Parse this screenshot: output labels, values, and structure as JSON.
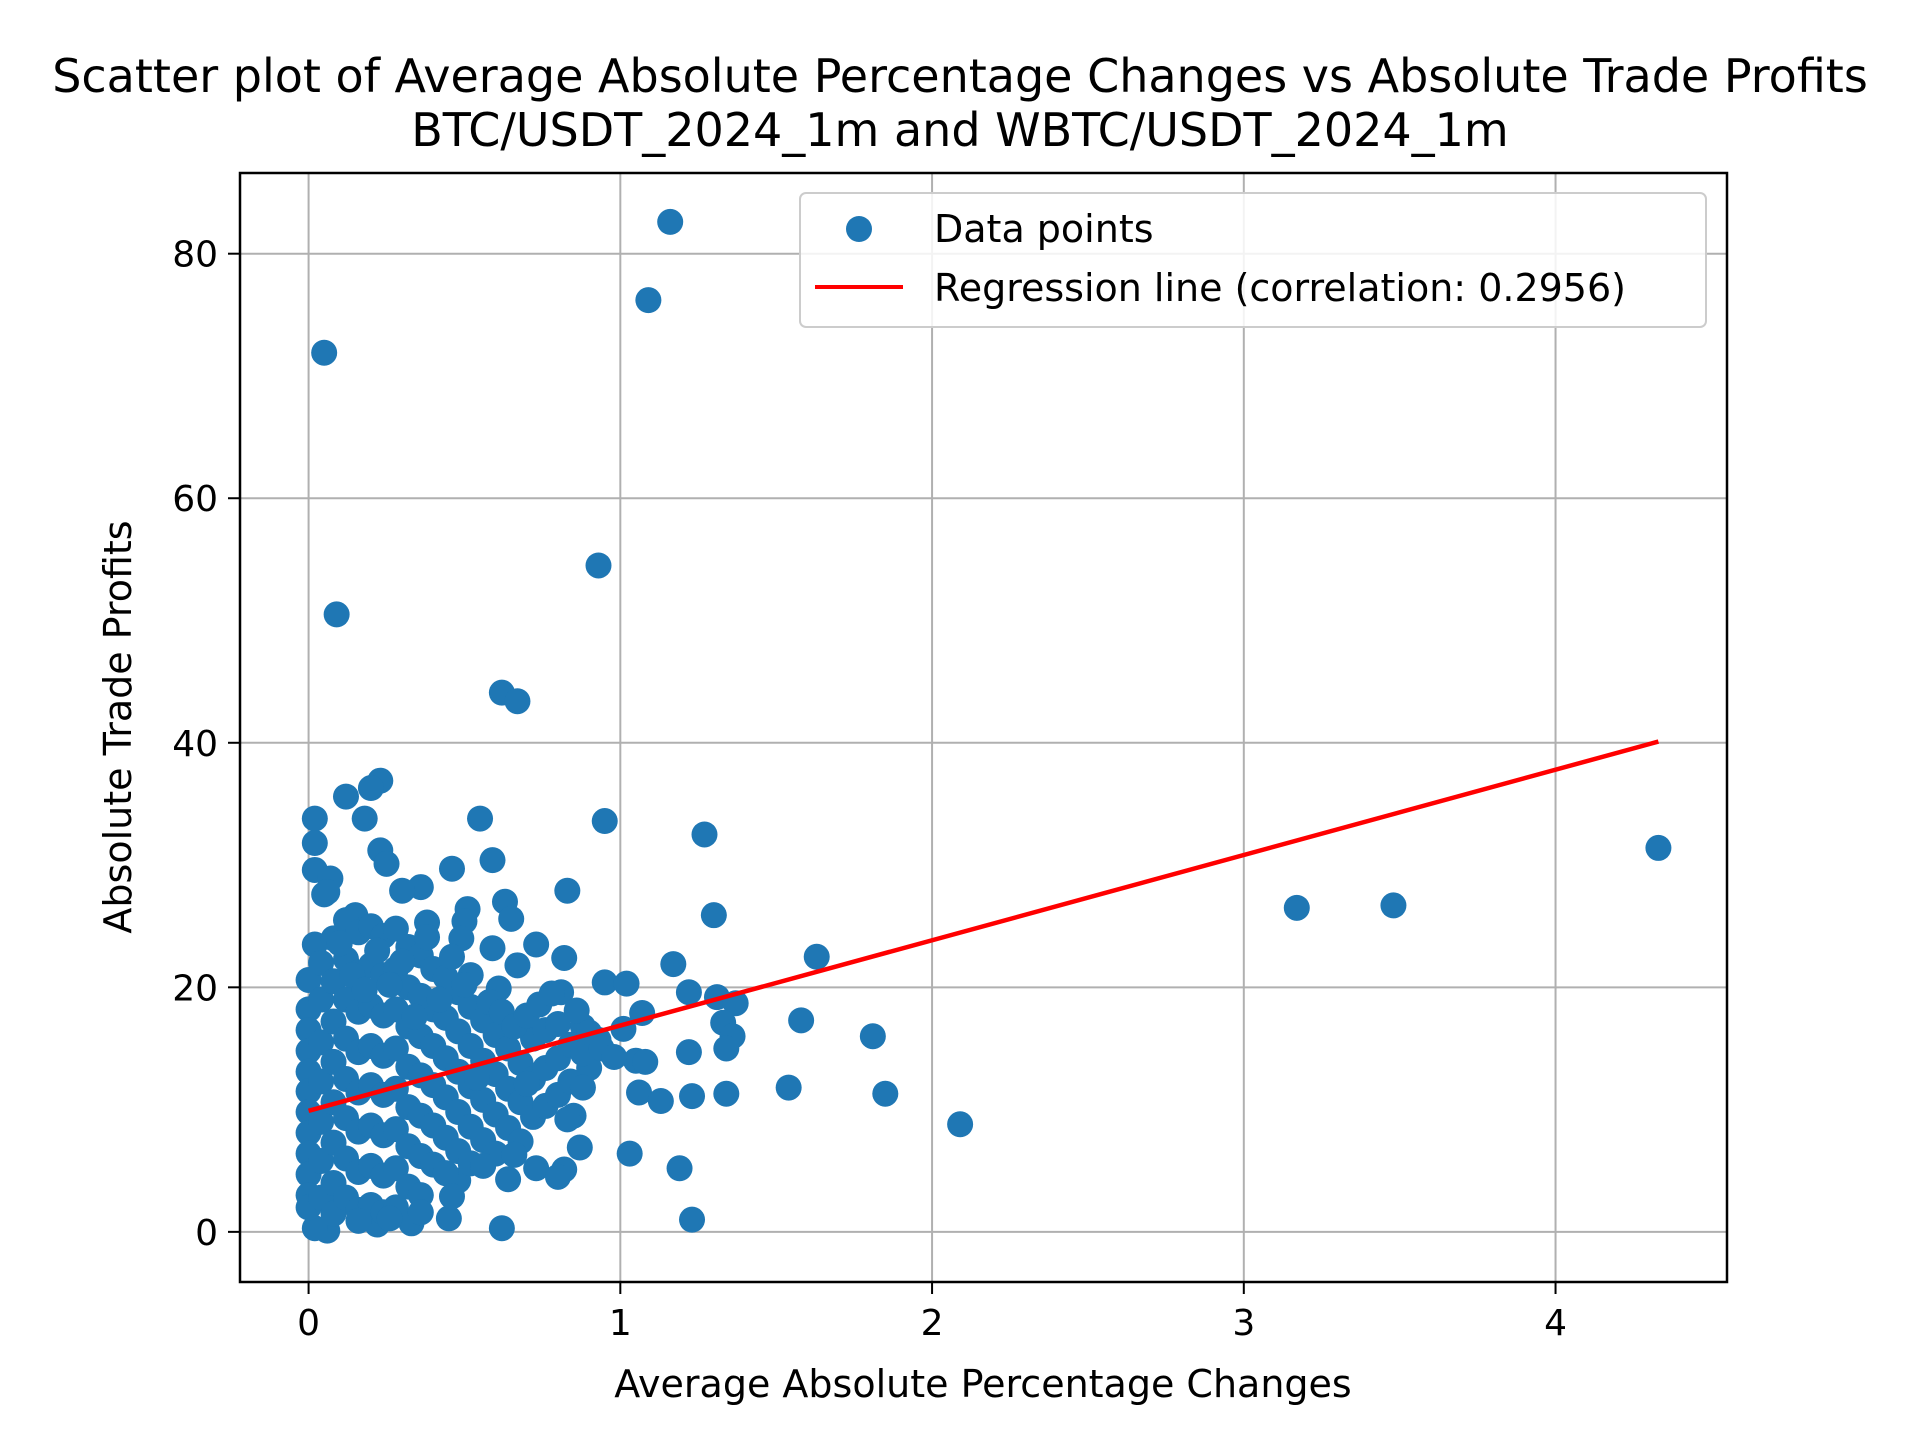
{
  "chart_data": {
    "type": "scatter",
    "title": "Scatter plot of Average Absolute Percentage Changes vs Absolute Trade Profits",
    "subtitle": "BTC/USDT_2024_1m and WBTC/USDT_2024_1m",
    "xlabel": "Average Absolute Percentage Changes",
    "ylabel": "Absolute Trade Profits",
    "xlim": [
      -0.22,
      4.55
    ],
    "ylim": [
      -4.1,
      86.6
    ],
    "xticks": [
      0,
      1,
      2,
      3,
      4
    ],
    "xtick_labels": [
      "0",
      "1",
      "2",
      "3",
      "4"
    ],
    "yticks": [
      0,
      20,
      40,
      60,
      80
    ],
    "ytick_labels": [
      "0",
      "20",
      "40",
      "60",
      "80"
    ],
    "grid": true,
    "legend_position": "top-right",
    "colors": {
      "points": "#1f77b4",
      "regression": "#ff0000"
    },
    "series": [
      {
        "name": "Data points",
        "kind": "scatter",
        "points": [
          [
            1.16,
            82.6
          ],
          [
            1.09,
            76.2
          ],
          [
            0.05,
            71.9
          ],
          [
            0.09,
            50.5
          ],
          [
            0.93,
            54.5
          ],
          [
            0.62,
            44.1
          ],
          [
            0.67,
            43.4
          ],
          [
            0.23,
            36.9
          ],
          [
            0.2,
            36.3
          ],
          [
            0.12,
            35.6
          ],
          [
            0.02,
            33.8
          ],
          [
            0.18,
            33.8
          ],
          [
            0.55,
            33.8
          ],
          [
            0.95,
            33.6
          ],
          [
            1.27,
            32.5
          ],
          [
            0.02,
            31.8
          ],
          [
            0.23,
            31.2
          ],
          [
            0.25,
            30.1
          ],
          [
            0.59,
            30.4
          ],
          [
            0.02,
            29.6
          ],
          [
            0.46,
            29.7
          ],
          [
            0.07,
            28.9
          ],
          [
            0.36,
            28.2
          ],
          [
            0.83,
            27.9
          ],
          [
            0.3,
            27.9
          ],
          [
            0.05,
            27.6
          ],
          [
            0.63,
            27.0
          ],
          [
            0.51,
            26.4
          ],
          [
            1.3,
            25.9
          ],
          [
            0.65,
            25.6
          ],
          [
            0.15,
            25.9
          ],
          [
            0.38,
            25.3
          ],
          [
            0.5,
            25.4
          ],
          [
            0.49,
            24.0
          ],
          [
            0.02,
            23.5
          ],
          [
            0.73,
            23.5
          ],
          [
            0.59,
            23.2
          ],
          [
            1.63,
            22.5
          ],
          [
            0.82,
            22.4
          ],
          [
            0.67,
            21.8
          ],
          [
            1.17,
            21.9
          ],
          [
            0.52,
            21.0
          ],
          [
            0.95,
            20.4
          ],
          [
            1.02,
            20.3
          ],
          [
            0.61,
            19.9
          ],
          [
            1.22,
            19.6
          ],
          [
            0.81,
            19.6
          ],
          [
            1.31,
            19.2
          ],
          [
            1.37,
            18.7
          ],
          [
            1.07,
            17.9
          ],
          [
            0.4,
            18.2
          ],
          [
            1.58,
            17.3
          ],
          [
            1.33,
            17.1
          ],
          [
            0.88,
            16.8
          ],
          [
            1.01,
            16.6
          ],
          [
            1.81,
            16.0
          ],
          [
            1.36,
            16.0
          ],
          [
            0.93,
            15.7
          ],
          [
            1.34,
            15.0
          ],
          [
            1.22,
            14.7
          ],
          [
            1.05,
            14.0
          ],
          [
            1.08,
            13.9
          ],
          [
            0.9,
            13.4
          ],
          [
            1.54,
            11.8
          ],
          [
            1.06,
            11.4
          ],
          [
            1.85,
            11.3
          ],
          [
            1.34,
            11.3
          ],
          [
            1.23,
            11.1
          ],
          [
            1.13,
            10.7
          ],
          [
            2.09,
            8.8
          ],
          [
            0.85,
            9.5
          ],
          [
            0.83,
            9.2
          ],
          [
            1.03,
            6.4
          ],
          [
            0.87,
            6.9
          ],
          [
            0.73,
            5.2
          ],
          [
            0.82,
            5.1
          ],
          [
            1.19,
            5.2
          ],
          [
            0.8,
            4.5
          ],
          [
            0.64,
            4.3
          ],
          [
            0.48,
            4.2
          ],
          [
            0.45,
            1.1
          ],
          [
            1.23,
            1.0
          ],
          [
            0.62,
            0.3
          ],
          [
            0.06,
            0.1
          ],
          [
            0.02,
            0.3
          ],
          [
            0.22,
            0.6
          ],
          [
            0.33,
            0.7
          ],
          [
            3.17,
            26.5
          ],
          [
            3.48,
            26.7
          ],
          [
            4.33,
            31.4
          ],
          [
            0.0,
            20.6
          ],
          [
            0.0,
            18.2
          ],
          [
            0.0,
            16.5
          ],
          [
            0.0,
            14.8
          ],
          [
            0.0,
            13.1
          ],
          [
            0.0,
            11.5
          ],
          [
            0.0,
            9.8
          ],
          [
            0.0,
            8.1
          ],
          [
            0.0,
            6.4
          ],
          [
            0.0,
            4.7
          ],
          [
            0.0,
            3.0
          ],
          [
            0.0,
            2.0
          ],
          [
            0.04,
            22.0
          ],
          [
            0.04,
            19.0
          ],
          [
            0.04,
            15.5
          ],
          [
            0.04,
            12.3
          ],
          [
            0.04,
            9.0
          ],
          [
            0.04,
            5.8
          ],
          [
            0.04,
            2.8
          ],
          [
            0.08,
            24.0
          ],
          [
            0.08,
            20.5
          ],
          [
            0.08,
            17.2
          ],
          [
            0.08,
            13.9
          ],
          [
            0.08,
            10.6
          ],
          [
            0.08,
            7.3
          ],
          [
            0.08,
            4.0
          ],
          [
            0.08,
            1.5
          ],
          [
            0.12,
            25.5
          ],
          [
            0.12,
            22.3
          ],
          [
            0.12,
            19.0
          ],
          [
            0.12,
            15.8
          ],
          [
            0.12,
            12.5
          ],
          [
            0.12,
            9.3
          ],
          [
            0.12,
            6.0
          ],
          [
            0.12,
            2.8
          ],
          [
            0.16,
            24.5
          ],
          [
            0.16,
            21.2
          ],
          [
            0.16,
            18.0
          ],
          [
            0.16,
            14.7
          ],
          [
            0.16,
            11.4
          ],
          [
            0.16,
            8.2
          ],
          [
            0.16,
            4.9
          ],
          [
            0.16,
            1.8
          ],
          [
            0.2,
            25.0
          ],
          [
            0.2,
            21.8
          ],
          [
            0.2,
            18.5
          ],
          [
            0.2,
            15.2
          ],
          [
            0.2,
            12.0
          ],
          [
            0.2,
            8.7
          ],
          [
            0.2,
            5.4
          ],
          [
            0.2,
            2.2
          ],
          [
            0.24,
            24.2
          ],
          [
            0.24,
            21.0
          ],
          [
            0.24,
            17.7
          ],
          [
            0.24,
            14.4
          ],
          [
            0.24,
            11.2
          ],
          [
            0.24,
            7.9
          ],
          [
            0.24,
            4.6
          ],
          [
            0.24,
            1.6
          ],
          [
            0.28,
            24.8
          ],
          [
            0.28,
            21.5
          ],
          [
            0.28,
            18.2
          ],
          [
            0.28,
            15.0
          ],
          [
            0.28,
            11.7
          ],
          [
            0.28,
            8.4
          ],
          [
            0.28,
            5.2
          ],
          [
            0.28,
            2.0
          ],
          [
            0.32,
            23.3
          ],
          [
            0.32,
            20.0
          ],
          [
            0.32,
            16.8
          ],
          [
            0.32,
            13.5
          ],
          [
            0.32,
            10.2
          ],
          [
            0.32,
            7.0
          ],
          [
            0.32,
            3.7
          ],
          [
            0.36,
            22.6
          ],
          [
            0.36,
            19.3
          ],
          [
            0.36,
            16.0
          ],
          [
            0.36,
            12.8
          ],
          [
            0.36,
            9.5
          ],
          [
            0.36,
            6.2
          ],
          [
            0.36,
            3.0
          ],
          [
            0.4,
            21.5
          ],
          [
            0.4,
            15.2
          ],
          [
            0.4,
            12.0
          ],
          [
            0.4,
            8.7
          ],
          [
            0.4,
            5.5
          ],
          [
            0.44,
            20.8
          ],
          [
            0.44,
            17.5
          ],
          [
            0.44,
            14.2
          ],
          [
            0.44,
            11.0
          ],
          [
            0.44,
            7.7
          ],
          [
            0.44,
            4.8
          ],
          [
            0.48,
            19.6
          ],
          [
            0.48,
            16.4
          ],
          [
            0.48,
            13.1
          ],
          [
            0.48,
            9.8
          ],
          [
            0.48,
            6.6
          ],
          [
            0.52,
            18.4
          ],
          [
            0.52,
            15.2
          ],
          [
            0.52,
            11.9
          ],
          [
            0.52,
            8.6
          ],
          [
            0.52,
            5.6
          ],
          [
            0.56,
            17.3
          ],
          [
            0.56,
            14.0
          ],
          [
            0.56,
            10.8
          ],
          [
            0.56,
            7.5
          ],
          [
            0.6,
            16.1
          ],
          [
            0.6,
            12.9
          ],
          [
            0.6,
            9.6
          ],
          [
            0.6,
            6.4
          ],
          [
            0.64,
            15.0
          ],
          [
            0.64,
            11.7
          ],
          [
            0.64,
            8.5
          ],
          [
            0.68,
            13.8
          ],
          [
            0.68,
            10.6
          ],
          [
            0.68,
            7.4
          ],
          [
            0.72,
            15.8
          ],
          [
            0.72,
            12.5
          ],
          [
            0.72,
            9.4
          ],
          [
            0.76,
            16.5
          ],
          [
            0.76,
            13.4
          ],
          [
            0.76,
            10.3
          ],
          [
            0.8,
            17.0
          ],
          [
            0.8,
            14.2
          ],
          [
            0.8,
            11.2
          ],
          [
            0.84,
            15.3
          ],
          [
            0.84,
            12.3
          ],
          [
            0.88,
            14.6
          ],
          [
            0.88,
            11.8
          ],
          [
            0.06,
            27.8
          ],
          [
            0.1,
            23.6
          ],
          [
            0.14,
            21.0
          ],
          [
            0.18,
            19.8
          ],
          [
            0.22,
            23.0
          ],
          [
            0.26,
            20.2
          ],
          [
            0.3,
            22.1
          ],
          [
            0.34,
            17.6
          ],
          [
            0.38,
            24.1
          ],
          [
            0.42,
            19.0
          ],
          [
            0.46,
            22.5
          ],
          [
            0.5,
            20.2
          ],
          [
            0.54,
            12.6
          ],
          [
            0.58,
            18.8
          ],
          [
            0.62,
            18.0
          ],
          [
            0.66,
            16.8
          ],
          [
            0.7,
            17.7
          ],
          [
            0.74,
            18.6
          ],
          [
            0.78,
            19.5
          ],
          [
            0.86,
            18.1
          ],
          [
            0.9,
            16.3
          ],
          [
            0.94,
            15.0
          ],
          [
            0.98,
            14.3
          ],
          [
            0.7,
            12.1
          ],
          [
            0.66,
            6.3
          ],
          [
            0.56,
            5.4
          ],
          [
            0.46,
            2.9
          ],
          [
            0.36,
            1.6
          ],
          [
            0.26,
            1.1
          ],
          [
            0.16,
            0.9
          ]
        ]
      },
      {
        "name": "Regression line (correlation: 0.2956)",
        "kind": "line",
        "points": [
          [
            0.0,
            9.9
          ],
          [
            4.33,
            40.1
          ]
        ]
      }
    ]
  }
}
